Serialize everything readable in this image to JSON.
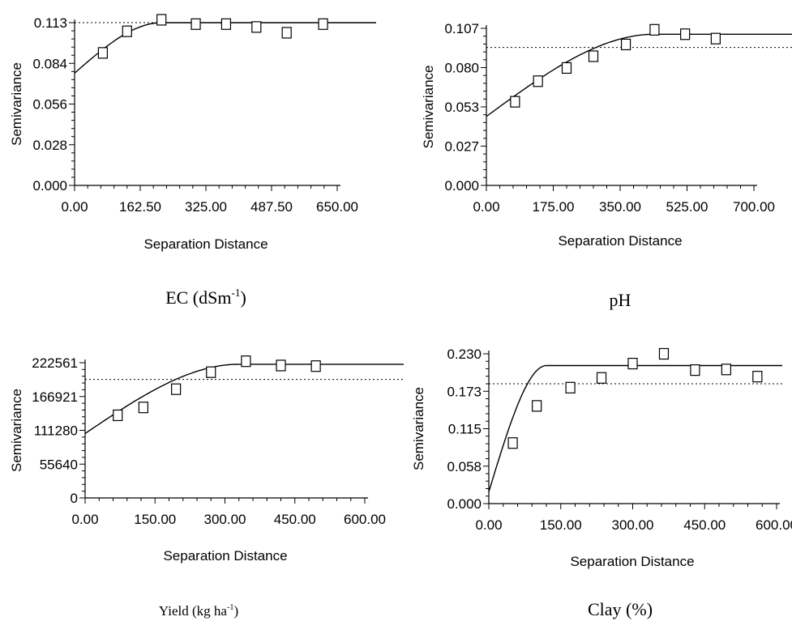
{
  "chart_data": [
    {
      "type": "scatter",
      "caption": "EC (dSm",
      "caption_sup": "-1",
      "caption_tail": ")",
      "xlabel": "Separation Distance",
      "ylabel": "Semivariance",
      "xlim": [
        0,
        650
      ],
      "ylim": [
        0,
        0.113
      ],
      "xticks": [
        "0.00",
        "162.50",
        "325.00",
        "487.50",
        "650.00"
      ],
      "yticks": [
        "0.000",
        "0.028",
        "0.056",
        "0.084",
        "0.113"
      ],
      "sill_line": 0.113,
      "points": {
        "x": [
          70,
          130,
          215,
          300,
          375,
          450,
          525,
          615
        ],
        "y": [
          0.092,
          0.107,
          0.115,
          0.112,
          0.112,
          0.11,
          0.106,
          0.112
        ]
      },
      "model": {
        "nugget": 0.078,
        "sill": 0.113,
        "range": 215
      },
      "grid": false,
      "legend": "none"
    },
    {
      "type": "scatter",
      "caption": "pH",
      "caption_sup": "",
      "caption_tail": "",
      "xlabel": "Separation Distance",
      "ylabel": "Semivariance",
      "xlim": [
        0,
        700
      ],
      "ylim": [
        0,
        0.107
      ],
      "xticks": [
        "0.00",
        "175.00",
        "350.00",
        "525.00",
        "700.00"
      ],
      "yticks": [
        "0.000",
        "0.027",
        "0.053",
        "0.080",
        "0.107"
      ],
      "sill_line": 0.094,
      "points": {
        "x": [
          75,
          135,
          210,
          280,
          365,
          440,
          520,
          600
        ],
        "y": [
          0.057,
          0.071,
          0.08,
          0.088,
          0.096,
          0.106,
          0.103,
          0.1
        ]
      },
      "model": {
        "nugget": 0.047,
        "sill": 0.103,
        "range": 440
      },
      "grid": false,
      "legend": "none"
    },
    {
      "type": "scatter",
      "caption": "Yield (kg ha",
      "caption_sup": "-1",
      "caption_tail": ")",
      "xlabel": "Separation Distance",
      "ylabel": "Semivariance",
      "xlim": [
        0,
        600
      ],
      "ylim": [
        0,
        222561
      ],
      "xticks": [
        "0.00",
        "150.00",
        "300.00",
        "450.00",
        "600.00"
      ],
      "yticks": [
        "0",
        "55640",
        "111280",
        "166921",
        "222561"
      ],
      "sill_line": 195000,
      "points": {
        "x": [
          70,
          125,
          195,
          270,
          345,
          420,
          495
        ],
        "y": [
          136000,
          149000,
          179000,
          207000,
          225000,
          218000,
          217000
        ]
      },
      "model": {
        "nugget": 106000,
        "sill": 220000,
        "range": 330
      },
      "grid": false,
      "legend": "none"
    },
    {
      "type": "scatter",
      "caption": "Clay (%)",
      "caption_sup": "",
      "caption_tail": "",
      "xlabel": "Separation Distance",
      "ylabel": "Semivariance",
      "xlim": [
        0,
        600
      ],
      "ylim": [
        0,
        0.23
      ],
      "xticks": [
        "0.00",
        "150.00",
        "300.00",
        "450.00",
        "600.00"
      ],
      "yticks": [
        "0.000",
        "0.058",
        "0.115",
        "0.173",
        "0.230"
      ],
      "sill_line": 0.184,
      "points": {
        "x": [
          50,
          100,
          170,
          235,
          300,
          365,
          430,
          495,
          560
        ],
        "y": [
          0.093,
          0.15,
          0.178,
          0.193,
          0.215,
          0.23,
          0.205,
          0.206,
          0.195
        ]
      },
      "model": {
        "nugget": 0.018,
        "sill": 0.212,
        "range": 120
      },
      "grid": false,
      "legend": "none"
    }
  ]
}
